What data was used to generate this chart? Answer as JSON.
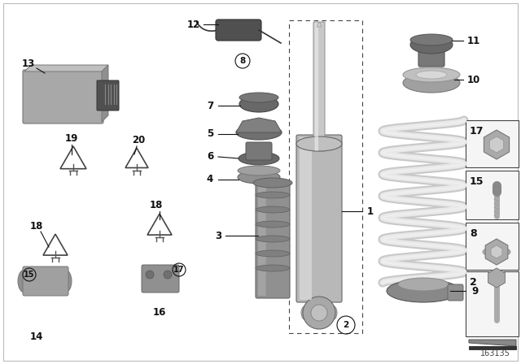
{
  "bg_color": "#ffffff",
  "diagram_number": "163135",
  "text_color": "#111111",
  "gray1": "#aaaaaa",
  "gray2": "#888888",
  "gray3": "#bbbbbb",
  "gray_dark": "#666666",
  "gray_light": "#cccccc",
  "spring_color": "#e8e8e8",
  "shock_body_color": "#b8b8b8",
  "shock_highlight": "#d8d8d8",
  "bump_color": "#909090",
  "rubber_color": "#787878",
  "cu_color": "#a0a0a0"
}
